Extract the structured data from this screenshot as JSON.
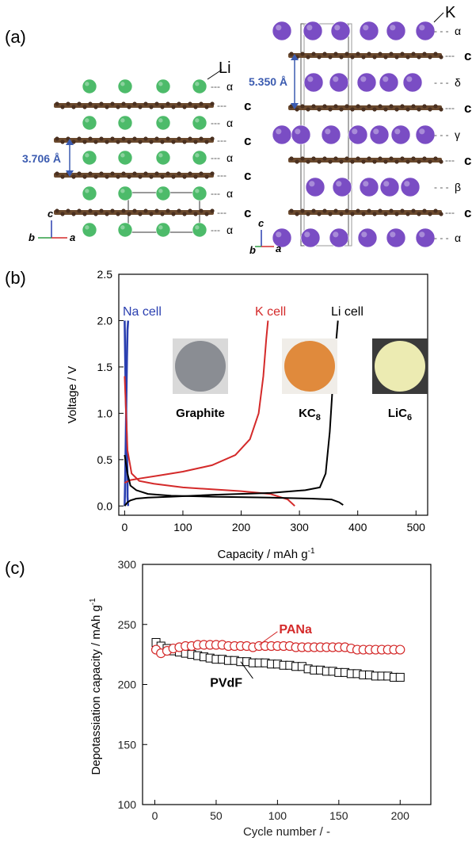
{
  "panel_a": {
    "label": "(a)",
    "li": {
      "atom": "Li",
      "spacing": "3.706 Å",
      "layers": [
        "α",
        "α",
        "α",
        "α",
        "α"
      ],
      "carbon": [
        "c",
        "c",
        "c",
        "c"
      ],
      "axes": {
        "up": "c",
        "left": "b",
        "right": "a"
      }
    },
    "k": {
      "atom": "K",
      "spacing": "5.350 Å",
      "layers": [
        "α",
        "δ",
        "γ",
        "β",
        "α"
      ],
      "carbon": [
        "c",
        "c",
        "c",
        "c"
      ],
      "axes": {
        "up": "c",
        "left": "b",
        "right": "a"
      }
    },
    "colors": {
      "li_atom": "#4dbb6a",
      "k_atom": "#7a4dc4",
      "carbon": "#6b4a2e",
      "spacing_text": "#3b5bb0"
    }
  },
  "panel_b": {
    "label": "(b)",
    "photos": [
      "Graphite",
      "KC",
      "LiC"
    ],
    "photo_subscripts": [
      "",
      "8",
      "6"
    ],
    "chart_data": {
      "type": "line",
      "xlabel": "Capacity / mAh g",
      "xlabel_sup": "-1",
      "ylabel": "Voltage / V",
      "xlim": [
        -10,
        520
      ],
      "ylim": [
        -0.1,
        2.5
      ],
      "xticks": [
        0,
        100,
        200,
        300,
        400,
        500
      ],
      "yticks": [
        0.0,
        0.5,
        1.0,
        1.5,
        2.0,
        2.5
      ],
      "series": [
        {
          "name": "Na cell",
          "color": "#2a3fb0",
          "curves": [
            {
              "x": [
                0,
                1,
                2,
                3,
                4,
                5,
                5,
                6
              ],
              "y": [
                2.0,
                1.6,
                1.2,
                0.9,
                0.6,
                0.3,
                0.1,
                0.0
              ]
            },
            {
              "x": [
                0,
                1,
                2,
                3,
                4,
                5,
                6
              ],
              "y": [
                0.0,
                0.3,
                0.7,
                1.2,
                1.6,
                1.9,
                2.0
              ]
            }
          ]
        },
        {
          "name": "K cell",
          "color": "#d42a2a",
          "curves": [
            {
              "x": [
                0,
                5,
                12,
                25,
                50,
                100,
                150,
                200,
                250,
                280,
                292
              ],
              "y": [
                1.4,
                0.6,
                0.35,
                0.27,
                0.24,
                0.2,
                0.18,
                0.16,
                0.13,
                0.07,
                0.0
              ]
            },
            {
              "x": [
                0,
                10,
                30,
                60,
                100,
                150,
                190,
                215,
                230,
                238,
                243,
                246
              ],
              "y": [
                0.25,
                0.28,
                0.3,
                0.33,
                0.37,
                0.44,
                0.55,
                0.72,
                1.0,
                1.4,
                1.8,
                2.0
              ]
            }
          ]
        },
        {
          "name": "Li cell",
          "color": "#000000",
          "curves": [
            {
              "x": [
                0,
                5,
                10,
                20,
                40,
                80,
                150,
                250,
                320,
                355,
                368,
                375
              ],
              "y": [
                0.55,
                0.35,
                0.22,
                0.17,
                0.13,
                0.11,
                0.1,
                0.09,
                0.08,
                0.07,
                0.04,
                0.01
              ]
            },
            {
              "x": [
                0,
                5,
                10,
                20,
                40,
                80,
                150,
                250,
                310,
                335,
                345,
                352,
                357,
                362,
                366
              ],
              "y": [
                0.0,
                0.04,
                0.06,
                0.08,
                0.09,
                0.1,
                0.12,
                0.14,
                0.17,
                0.2,
                0.35,
                0.8,
                1.3,
                1.7,
                2.0
              ]
            }
          ]
        }
      ]
    }
  },
  "panel_c": {
    "label": "(c)",
    "chart_data": {
      "type": "scatter",
      "xlabel": "Cycle number / -",
      "ylabel": "Depotassiation capacity  / mAh g",
      "ylabel_sup": "-1",
      "xlim": [
        -10,
        225
      ],
      "ylim": [
        100,
        300
      ],
      "xticks": [
        0,
        50,
        100,
        150,
        200
      ],
      "yticks": [
        100,
        150,
        200,
        250,
        300
      ],
      "series": [
        {
          "name": "PANa",
          "color": "#d42a2a",
          "marker": "circle",
          "x": [
            1,
            5,
            10,
            15,
            20,
            25,
            30,
            35,
            40,
            45,
            50,
            55,
            60,
            65,
            70,
            75,
            80,
            85,
            90,
            95,
            100,
            105,
            110,
            115,
            120,
            125,
            130,
            135,
            140,
            145,
            150,
            155,
            160,
            165,
            170,
            175,
            180,
            185,
            190,
            195,
            200
          ],
          "y": [
            229,
            226,
            228,
            230,
            231,
            232,
            232,
            233,
            233,
            233,
            233,
            233,
            232,
            232,
            232,
            232,
            231,
            232,
            232,
            232,
            232,
            232,
            232,
            231,
            231,
            231,
            231,
            231,
            231,
            231,
            231,
            231,
            230,
            229,
            229,
            229,
            229,
            229,
            229,
            229,
            229
          ]
        },
        {
          "name": "PVdF",
          "color": "#000000",
          "marker": "square",
          "x": [
            1,
            5,
            10,
            15,
            20,
            25,
            30,
            35,
            40,
            45,
            50,
            55,
            60,
            65,
            70,
            75,
            80,
            85,
            90,
            95,
            100,
            105,
            110,
            115,
            120,
            125,
            130,
            135,
            140,
            145,
            150,
            155,
            160,
            165,
            170,
            175,
            180,
            185,
            190,
            195,
            200
          ],
          "y": [
            235,
            232,
            230,
            228,
            227,
            226,
            225,
            224,
            223,
            222,
            221,
            221,
            220,
            220,
            219,
            219,
            218,
            218,
            218,
            217,
            217,
            216,
            216,
            215,
            215,
            213,
            212,
            212,
            211,
            211,
            210,
            210,
            209,
            209,
            208,
            208,
            207,
            207,
            207,
            206,
            206
          ]
        }
      ]
    }
  }
}
